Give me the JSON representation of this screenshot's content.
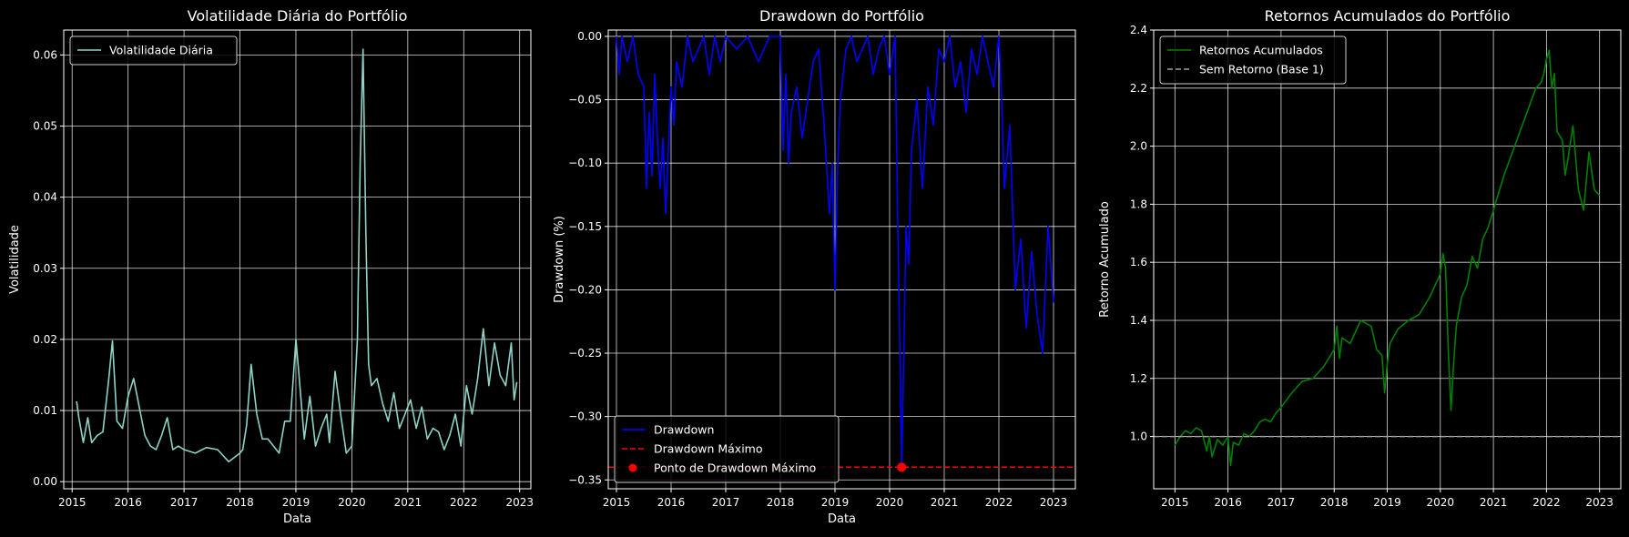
{
  "colors": {
    "background": "#000000",
    "foreground": "#ffffff",
    "grid": "#ffffff",
    "volatility": "#8dd3c7",
    "drawdown": "#0000ff",
    "max_drawdown": "#ff0000",
    "cumulative": "#008000",
    "baseline": "#a0a0a0"
  },
  "chart_data": [
    {
      "type": "line",
      "title": "Volatilidade Diária do Portfólio",
      "xlabel": "Data",
      "ylabel": "Volatilidade",
      "xlim": [
        2014.85,
        2023.2
      ],
      "ylim": [
        -0.001,
        0.0635
      ],
      "x_ticks": [
        2015,
        2016,
        2017,
        2018,
        2019,
        2020,
        2021,
        2022,
        2023
      ],
      "x_tick_labels": [
        "2015",
        "2016",
        "2017",
        "2018",
        "2019",
        "2020",
        "2021",
        "2022",
        "2023"
      ],
      "y_ticks": [
        0.0,
        0.01,
        0.02,
        0.03,
        0.04,
        0.05,
        0.06
      ],
      "y_tick_labels": [
        "0.00",
        "0.01",
        "0.02",
        "0.03",
        "0.04",
        "0.05",
        "0.06"
      ],
      "grid": true,
      "legend_position": "upper-left",
      "series": [
        {
          "name": "Volatilidade Diária",
          "color": "#8dd3c7",
          "style": "solid",
          "x": [
            2015.08,
            2015.12,
            2015.2,
            2015.28,
            2015.35,
            2015.45,
            2015.55,
            2015.65,
            2015.72,
            2015.8,
            2015.9,
            2016.0,
            2016.1,
            2016.2,
            2016.3,
            2016.4,
            2016.5,
            2016.6,
            2016.7,
            2016.8,
            2016.9,
            2017.0,
            2017.2,
            2017.4,
            2017.6,
            2017.8,
            2018.0,
            2018.05,
            2018.12,
            2018.2,
            2018.3,
            2018.4,
            2018.5,
            2018.6,
            2018.7,
            2018.8,
            2018.9,
            2019.0,
            2019.05,
            2019.15,
            2019.25,
            2019.35,
            2019.45,
            2019.55,
            2019.6,
            2019.7,
            2019.8,
            2019.9,
            2020.0,
            2020.1,
            2020.15,
            2020.2,
            2020.25,
            2020.3,
            2020.35,
            2020.45,
            2020.55,
            2020.65,
            2020.75,
            2020.85,
            2020.95,
            2021.05,
            2021.15,
            2021.25,
            2021.35,
            2021.45,
            2021.55,
            2021.65,
            2021.75,
            2021.85,
            2021.95,
            2022.05,
            2022.15,
            2022.25,
            2022.35,
            2022.45,
            2022.55,
            2022.65,
            2022.75,
            2022.85,
            2022.9,
            2022.95
          ],
          "y": [
            0.0113,
            0.009,
            0.0055,
            0.009,
            0.0055,
            0.0065,
            0.007,
            0.014,
            0.0198,
            0.0085,
            0.0075,
            0.012,
            0.0145,
            0.0105,
            0.0065,
            0.005,
            0.0045,
            0.0065,
            0.009,
            0.0045,
            0.005,
            0.0045,
            0.004,
            0.0048,
            0.0045,
            0.0028,
            0.004,
            0.0045,
            0.008,
            0.0165,
            0.0095,
            0.006,
            0.006,
            0.005,
            0.004,
            0.0085,
            0.0085,
            0.02,
            0.0155,
            0.006,
            0.012,
            0.005,
            0.0075,
            0.0095,
            0.0055,
            0.0155,
            0.0095,
            0.004,
            0.005,
            0.02,
            0.045,
            0.0608,
            0.035,
            0.0165,
            0.0135,
            0.0145,
            0.011,
            0.0085,
            0.0125,
            0.0075,
            0.0095,
            0.0115,
            0.0075,
            0.0105,
            0.006,
            0.0075,
            0.007,
            0.0045,
            0.0065,
            0.0095,
            0.005,
            0.0135,
            0.0095,
            0.0145,
            0.0215,
            0.0135,
            0.0195,
            0.015,
            0.0135,
            0.0195,
            0.0115,
            0.014
          ]
        }
      ]
    },
    {
      "type": "line",
      "title": "Drawdown do Portfólio",
      "xlabel": "Data",
      "ylabel": "Drawdown (%)",
      "xlim": [
        2014.85,
        2023.4
      ],
      "ylim": [
        -0.357,
        0.005
      ],
      "x_ticks": [
        2015,
        2016,
        2017,
        2018,
        2019,
        2020,
        2021,
        2022,
        2023
      ],
      "x_tick_labels": [
        "2015",
        "2016",
        "2017",
        "2018",
        "2019",
        "2020",
        "2021",
        "2022",
        "2023"
      ],
      "y_ticks": [
        0.0,
        -0.05,
        -0.1,
        -0.15,
        -0.2,
        -0.25,
        -0.3,
        -0.35
      ],
      "y_tick_labels": [
        "0.00",
        "−0.05",
        "−0.10",
        "−0.15",
        "−0.20",
        "−0.25",
        "−0.30",
        "−0.35"
      ],
      "grid": true,
      "legend_position": "lower-left",
      "max_drawdown_value": -0.34,
      "max_drawdown_date": 2020.22,
      "series": [
        {
          "name": "Drawdown",
          "color": "#0000ff",
          "style": "solid",
          "x": [
            2015.0,
            2015.05,
            2015.1,
            2015.2,
            2015.3,
            2015.4,
            2015.5,
            2015.55,
            2015.6,
            2015.65,
            2015.7,
            2015.75,
            2015.8,
            2015.85,
            2015.9,
            2016.0,
            2016.05,
            2016.1,
            2016.2,
            2016.3,
            2016.4,
            2016.5,
            2016.6,
            2016.7,
            2016.8,
            2016.9,
            2017.0,
            2017.2,
            2017.4,
            2017.6,
            2017.8,
            2018.0,
            2018.05,
            2018.1,
            2018.15,
            2018.2,
            2018.3,
            2018.4,
            2018.5,
            2018.6,
            2018.7,
            2018.8,
            2018.9,
            2018.95,
            2019.0,
            2019.05,
            2019.1,
            2019.2,
            2019.3,
            2019.4,
            2019.5,
            2019.6,
            2019.7,
            2019.8,
            2019.9,
            2020.0,
            2020.1,
            2020.15,
            2020.2,
            2020.22,
            2020.26,
            2020.3,
            2020.35,
            2020.4,
            2020.5,
            2020.6,
            2020.7,
            2020.8,
            2020.9,
            2021.0,
            2021.1,
            2021.2,
            2021.3,
            2021.4,
            2021.5,
            2021.6,
            2021.7,
            2021.8,
            2021.9,
            2022.0,
            2022.05,
            2022.1,
            2022.2,
            2022.3,
            2022.4,
            2022.5,
            2022.6,
            2022.7,
            2022.8,
            2022.85,
            2022.9,
            2023.0
          ],
          "y": [
            0.0,
            -0.03,
            0.0,
            -0.02,
            0.0,
            -0.03,
            -0.04,
            -0.12,
            -0.06,
            -0.11,
            -0.03,
            -0.08,
            -0.12,
            -0.08,
            -0.14,
            -0.04,
            -0.07,
            -0.02,
            -0.04,
            0.0,
            -0.02,
            -0.01,
            0.0,
            -0.03,
            0.0,
            -0.02,
            0.0,
            -0.01,
            0.0,
            -0.02,
            0.0,
            0.0,
            -0.09,
            -0.03,
            -0.1,
            -0.06,
            -0.04,
            -0.08,
            -0.05,
            -0.02,
            -0.01,
            -0.07,
            -0.14,
            -0.1,
            -0.2,
            -0.1,
            -0.05,
            -0.01,
            0.0,
            -0.02,
            -0.01,
            0.0,
            -0.03,
            -0.01,
            0.0,
            -0.03,
            0.0,
            -0.15,
            -0.28,
            -0.34,
            -0.25,
            -0.15,
            -0.18,
            -0.09,
            -0.05,
            -0.12,
            -0.04,
            -0.07,
            -0.01,
            -0.02,
            0.0,
            -0.04,
            -0.02,
            -0.06,
            -0.01,
            -0.03,
            0.0,
            -0.02,
            -0.04,
            0.0,
            -0.05,
            -0.12,
            -0.07,
            -0.2,
            -0.16,
            -0.23,
            -0.17,
            -0.22,
            -0.25,
            -0.2,
            -0.15,
            -0.21
          ]
        },
        {
          "name": "Drawdown Máximo",
          "color": "#ff0000",
          "style": "dashed",
          "x": [
            2014.85,
            2023.4
          ],
          "y": [
            -0.34,
            -0.34
          ]
        },
        {
          "name": "Ponto de Drawdown Máximo",
          "color": "#ff0000",
          "style": "marker",
          "x": [
            2020.22
          ],
          "y": [
            -0.34
          ]
        }
      ]
    },
    {
      "type": "line",
      "title": "Retornos Acumulados do Portfólio",
      "xlabel": "",
      "ylabel": "Retorno Acumulado",
      "xlim": [
        2014.6,
        2023.4
      ],
      "ylim": [
        0.82,
        2.4
      ],
      "x_ticks": [
        2015,
        2016,
        2017,
        2018,
        2019,
        2020,
        2021,
        2022,
        2023
      ],
      "x_tick_labels": [
        "2015",
        "2016",
        "2017",
        "2018",
        "2019",
        "2020",
        "2021",
        "2022",
        "2023"
      ],
      "y_ticks": [
        1.0,
        1.2,
        1.4,
        1.6,
        1.8,
        2.0,
        2.2,
        2.4
      ],
      "y_tick_labels": [
        "1.0",
        "1.2",
        "1.4",
        "1.6",
        "1.8",
        "2.0",
        "2.2",
        "2.4"
      ],
      "grid": true,
      "legend_position": "upper-left",
      "series": [
        {
          "name": "Retornos Acumulados",
          "color": "#008000",
          "style": "solid",
          "x": [
            2015.0,
            2015.1,
            2015.2,
            2015.3,
            2015.4,
            2015.5,
            2015.6,
            2015.65,
            2015.7,
            2015.8,
            2015.9,
            2016.0,
            2016.05,
            2016.1,
            2016.2,
            2016.3,
            2016.4,
            2016.5,
            2016.6,
            2016.7,
            2016.8,
            2016.9,
            2017.0,
            2017.2,
            2017.4,
            2017.6,
            2017.8,
            2018.0,
            2018.05,
            2018.1,
            2018.15,
            2018.3,
            2018.5,
            2018.7,
            2018.8,
            2018.9,
            2018.95,
            2019.0,
            2019.05,
            2019.2,
            2019.4,
            2019.6,
            2019.8,
            2020.0,
            2020.05,
            2020.1,
            2020.15,
            2020.2,
            2020.25,
            2020.3,
            2020.4,
            2020.5,
            2020.6,
            2020.7,
            2020.8,
            2020.9,
            2021.0,
            2021.1,
            2021.2,
            2021.3,
            2021.4,
            2021.5,
            2021.6,
            2021.7,
            2021.8,
            2021.9,
            2021.95,
            2022.0,
            2022.05,
            2022.1,
            2022.15,
            2022.2,
            2022.3,
            2022.35,
            2022.4,
            2022.5,
            2022.6,
            2022.7,
            2022.8,
            2022.9,
            2023.0
          ],
          "y": [
            0.97,
            1.0,
            1.02,
            1.01,
            1.03,
            1.02,
            0.95,
            1.0,
            0.93,
            0.99,
            0.97,
            1.0,
            0.9,
            0.98,
            0.97,
            1.01,
            1.0,
            1.02,
            1.05,
            1.06,
            1.05,
            1.08,
            1.1,
            1.15,
            1.19,
            1.2,
            1.24,
            1.3,
            1.38,
            1.27,
            1.34,
            1.32,
            1.4,
            1.38,
            1.3,
            1.28,
            1.15,
            1.25,
            1.32,
            1.37,
            1.4,
            1.42,
            1.48,
            1.56,
            1.63,
            1.58,
            1.3,
            1.09,
            1.25,
            1.38,
            1.48,
            1.52,
            1.62,
            1.58,
            1.68,
            1.72,
            1.78,
            1.84,
            1.9,
            1.95,
            2.0,
            2.05,
            2.1,
            2.15,
            2.2,
            2.22,
            2.25,
            2.3,
            2.33,
            2.2,
            2.25,
            2.05,
            2.02,
            1.9,
            1.95,
            2.07,
            1.85,
            1.78,
            1.98,
            1.85,
            1.83
          ]
        },
        {
          "name": "Sem Retorno (Base 1)",
          "color": "#a0a0a0",
          "style": "dashed",
          "x": [
            2014.6,
            2023.4
          ],
          "y": [
            1.0,
            1.0
          ]
        }
      ]
    }
  ]
}
